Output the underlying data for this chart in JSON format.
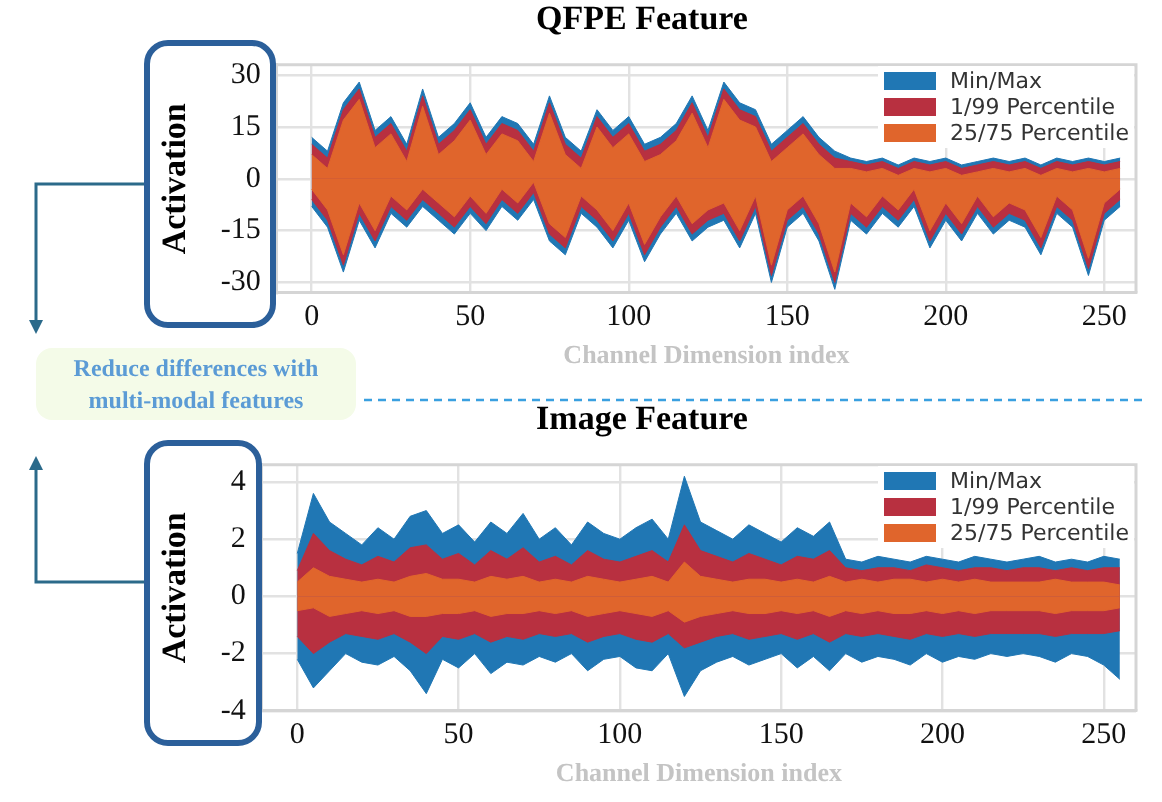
{
  "chart_data": [
    {
      "type": "area",
      "title": "QFPE Feature",
      "xlabel": "Channel Dimension index",
      "ylabel": "Activation",
      "annotations": [
        "Reduce differences with multi-modal features"
      ],
      "x": [
        0,
        5,
        10,
        15,
        20,
        25,
        30,
        35,
        40,
        45,
        50,
        55,
        60,
        65,
        70,
        75,
        80,
        85,
        90,
        95,
        100,
        105,
        110,
        115,
        120,
        125,
        130,
        135,
        140,
        145,
        150,
        155,
        160,
        165,
        170,
        175,
        180,
        185,
        190,
        195,
        200,
        205,
        210,
        215,
        220,
        225,
        230,
        235,
        240,
        245,
        250,
        255
      ],
      "xlim": [
        -11,
        260
      ],
      "xticks": [
        0,
        50,
        100,
        150,
        200,
        250
      ],
      "ylim": [
        -33,
        33
      ],
      "yticks": [
        -30,
        -15,
        0,
        15,
        30
      ],
      "grid": true,
      "legend": "top right",
      "series": [
        {
          "name": "Min/Max",
          "color": "#2077b4",
          "type": "area",
          "values": [
            12,
            8,
            22,
            28,
            14,
            18,
            10,
            26,
            12,
            16,
            22,
            12,
            18,
            16,
            10,
            24,
            12,
            8,
            20,
            14,
            18,
            10,
            12,
            16,
            24,
            14,
            28,
            22,
            20,
            10,
            14,
            18,
            12,
            8,
            6,
            5,
            6,
            4,
            6,
            5,
            6,
            4,
            5,
            6,
            5,
            6,
            4,
            6,
            5,
            6,
            5,
            6
          ]
        },
        {
          "color": "#2077b4",
          "type": "area",
          "values": [
            -8,
            -14,
            -27,
            -12,
            -20,
            -10,
            -14,
            -8,
            -12,
            -16,
            -10,
            -15,
            -8,
            -12,
            -6,
            -18,
            -22,
            -10,
            -14,
            -20,
            -12,
            -24,
            -16,
            -10,
            -18,
            -14,
            -12,
            -20,
            -10,
            -30,
            -14,
            -10,
            -18,
            -32,
            -12,
            -16,
            -10,
            -14,
            -8,
            -20,
            -12,
            -18,
            -10,
            -16,
            -12,
            -14,
            -22,
            -10,
            -14,
            -28,
            -12,
            -8
          ]
        },
        {
          "name": "1/99 Percentile",
          "color": "#b83040",
          "type": "area",
          "values": [
            10,
            6,
            20,
            26,
            12,
            16,
            8,
            24,
            10,
            14,
            20,
            10,
            16,
            14,
            8,
            22,
            10,
            6,
            18,
            12,
            16,
            8,
            10,
            14,
            22,
            12,
            26,
            20,
            18,
            8,
            12,
            16,
            10,
            6,
            5,
            4,
            5,
            3,
            5,
            4,
            5,
            3,
            4,
            5,
            4,
            5,
            3,
            5,
            4,
            5,
            4,
            5
          ]
        },
        {
          "color": "#b83040",
          "type": "area",
          "values": [
            -6,
            -12,
            -25,
            -10,
            -18,
            -8,
            -12,
            -6,
            -10,
            -14,
            -8,
            -13,
            -6,
            -10,
            -4,
            -16,
            -20,
            -8,
            -12,
            -18,
            -10,
            -22,
            -14,
            -8,
            -16,
            -12,
            -10,
            -18,
            -8,
            -28,
            -12,
            -8,
            -16,
            -30,
            -10,
            -14,
            -8,
            -12,
            -6,
            -18,
            -10,
            -16,
            -8,
            -14,
            -10,
            -12,
            -20,
            -8,
            -12,
            -26,
            -10,
            -6
          ]
        },
        {
          "name": "25/75 Percentile",
          "color": "#e0652c",
          "type": "area",
          "values": [
            7,
            3,
            17,
            23,
            9,
            13,
            5,
            21,
            7,
            11,
            17,
            7,
            13,
            11,
            5,
            19,
            7,
            3,
            15,
            9,
            13,
            5,
            7,
            11,
            19,
            9,
            23,
            17,
            15,
            5,
            9,
            13,
            7,
            3,
            3,
            2,
            3,
            1,
            3,
            2,
            3,
            1,
            2,
            3,
            2,
            3,
            1,
            3,
            2,
            3,
            2,
            3
          ]
        },
        {
          "color": "#e0652c",
          "type": "area",
          "values": [
            -3,
            -9,
            -22,
            -7,
            -15,
            -5,
            -9,
            -3,
            -7,
            -11,
            -5,
            -10,
            -3,
            -7,
            -1,
            -13,
            -17,
            -5,
            -9,
            -15,
            -7,
            -19,
            -11,
            -5,
            -13,
            -9,
            -7,
            -15,
            -5,
            -25,
            -9,
            -5,
            -13,
            -27,
            -7,
            -11,
            -5,
            -9,
            -3,
            -15,
            -7,
            -13,
            -5,
            -11,
            -7,
            -9,
            -17,
            -5,
            -9,
            -23,
            -7,
            -3
          ]
        }
      ]
    },
    {
      "type": "area",
      "title": "Image Feature",
      "xlabel": "Channel Dimension index",
      "ylabel": "Activation",
      "x": [
        0,
        5,
        10,
        15,
        20,
        25,
        30,
        35,
        40,
        45,
        50,
        55,
        60,
        65,
        70,
        75,
        80,
        85,
        90,
        95,
        100,
        105,
        110,
        115,
        120,
        125,
        130,
        135,
        140,
        145,
        150,
        155,
        160,
        165,
        170,
        175,
        180,
        185,
        190,
        195,
        200,
        205,
        210,
        215,
        220,
        225,
        230,
        235,
        240,
        245,
        250,
        255
      ],
      "xlim": [
        -11,
        260
      ],
      "xticks": [
        0,
        50,
        100,
        150,
        200,
        250
      ],
      "ylim": [
        -4,
        4.6
      ],
      "yticks": [
        -4,
        -2,
        0,
        2,
        4
      ],
      "grid": true,
      "legend": "top right",
      "series": [
        {
          "name": "Min/Max",
          "color": "#2077b4",
          "type": "area",
          "values": [
            1.5,
            3.6,
            2.6,
            2.2,
            1.8,
            2.4,
            2.0,
            2.8,
            3.0,
            2.2,
            2.5,
            1.9,
            2.6,
            2.2,
            2.9,
            2.0,
            2.4,
            1.8,
            2.6,
            2.2,
            2.0,
            2.4,
            2.7,
            2.0,
            4.2,
            2.6,
            2.3,
            2.0,
            2.5,
            2.2,
            1.9,
            2.4,
            2.1,
            2.6,
            1.3,
            1.2,
            1.4,
            1.3,
            1.2,
            1.4,
            1.3,
            1.2,
            1.4,
            1.3,
            1.2,
            1.3,
            1.4,
            1.2,
            1.3,
            1.2,
            1.4,
            1.3
          ]
        },
        {
          "color": "#2077b4",
          "type": "area",
          "values": [
            -2.2,
            -3.2,
            -2.6,
            -2.0,
            -2.3,
            -2.4,
            -2.1,
            -2.6,
            -3.4,
            -2.2,
            -2.5,
            -2.0,
            -2.7,
            -2.3,
            -2.4,
            -2.1,
            -2.3,
            -2.0,
            -2.6,
            -2.2,
            -2.1,
            -2.5,
            -2.6,
            -2.0,
            -3.5,
            -2.6,
            -2.3,
            -2.1,
            -2.4,
            -2.2,
            -2.0,
            -2.5,
            -2.1,
            -2.6,
            -2.0,
            -2.3,
            -2.1,
            -2.2,
            -2.4,
            -2.0,
            -2.3,
            -2.1,
            -2.2,
            -2.0,
            -2.1,
            -2.0,
            -2.1,
            -2.3,
            -2.0,
            -2.1,
            -2.4,
            -2.9
          ]
        },
        {
          "name": "1/99 Percentile",
          "color": "#b83040",
          "type": "area",
          "values": [
            0.9,
            2.2,
            1.6,
            1.3,
            1.1,
            1.4,
            1.2,
            1.7,
            1.8,
            1.3,
            1.5,
            1.1,
            1.6,
            1.3,
            1.7,
            1.2,
            1.4,
            1.1,
            1.6,
            1.3,
            1.2,
            1.4,
            1.6,
            1.2,
            2.5,
            1.6,
            1.4,
            1.2,
            1.5,
            1.3,
            1.1,
            1.4,
            1.3,
            1.6,
            1.0,
            0.9,
            1.0,
            1.0,
            0.9,
            1.1,
            1.0,
            0.9,
            1.0,
            1.0,
            0.9,
            1.0,
            1.0,
            0.9,
            1.0,
            0.9,
            1.0,
            1.0
          ]
        },
        {
          "color": "#b83040",
          "type": "area",
          "values": [
            -1.4,
            -2.0,
            -1.6,
            -1.3,
            -1.4,
            -1.5,
            -1.3,
            -1.6,
            -2.0,
            -1.4,
            -1.5,
            -1.3,
            -1.6,
            -1.4,
            -1.5,
            -1.3,
            -1.4,
            -1.3,
            -1.6,
            -1.4,
            -1.3,
            -1.5,
            -1.6,
            -1.3,
            -1.8,
            -1.6,
            -1.4,
            -1.3,
            -1.5,
            -1.4,
            -1.3,
            -1.5,
            -1.3,
            -1.6,
            -1.3,
            -1.4,
            -1.3,
            -1.4,
            -1.5,
            -1.3,
            -1.4,
            -1.3,
            -1.4,
            -1.3,
            -1.3,
            -1.3,
            -1.3,
            -1.4,
            -1.3,
            -1.3,
            -1.3,
            -1.2
          ]
        },
        {
          "name": "25/75 Percentile",
          "color": "#e0652c",
          "type": "area",
          "values": [
            0.5,
            1.0,
            0.7,
            0.6,
            0.5,
            0.6,
            0.5,
            0.7,
            0.8,
            0.6,
            0.6,
            0.5,
            0.7,
            0.6,
            0.7,
            0.5,
            0.6,
            0.5,
            0.7,
            0.6,
            0.5,
            0.6,
            0.7,
            0.5,
            1.2,
            0.7,
            0.6,
            0.5,
            0.6,
            0.6,
            0.5,
            0.6,
            0.5,
            0.7,
            0.5,
            0.6,
            0.5,
            0.6,
            0.6,
            0.5,
            0.6,
            0.5,
            0.6,
            0.5,
            0.5,
            0.5,
            0.5,
            0.6,
            0.5,
            0.5,
            0.5,
            0.4
          ]
        },
        {
          "color": "#e0652c",
          "type": "area",
          "values": [
            -0.5,
            -0.4,
            -0.7,
            -0.6,
            -0.5,
            -0.6,
            -0.5,
            -0.7,
            -0.7,
            -0.6,
            -0.6,
            -0.5,
            -0.7,
            -0.6,
            -0.6,
            -0.5,
            -0.6,
            -0.5,
            -0.7,
            -0.6,
            -0.5,
            -0.6,
            -0.7,
            -0.5,
            -0.9,
            -0.7,
            -0.6,
            -0.5,
            -0.6,
            -0.6,
            -0.5,
            -0.6,
            -0.5,
            -0.7,
            -0.5,
            -0.6,
            -0.5,
            -0.6,
            -0.6,
            -0.5,
            -0.6,
            -0.5,
            -0.6,
            -0.5,
            -0.5,
            -0.5,
            -0.5,
            -0.6,
            -0.5,
            -0.5,
            -0.5,
            -0.4
          ]
        }
      ]
    }
  ]
}
